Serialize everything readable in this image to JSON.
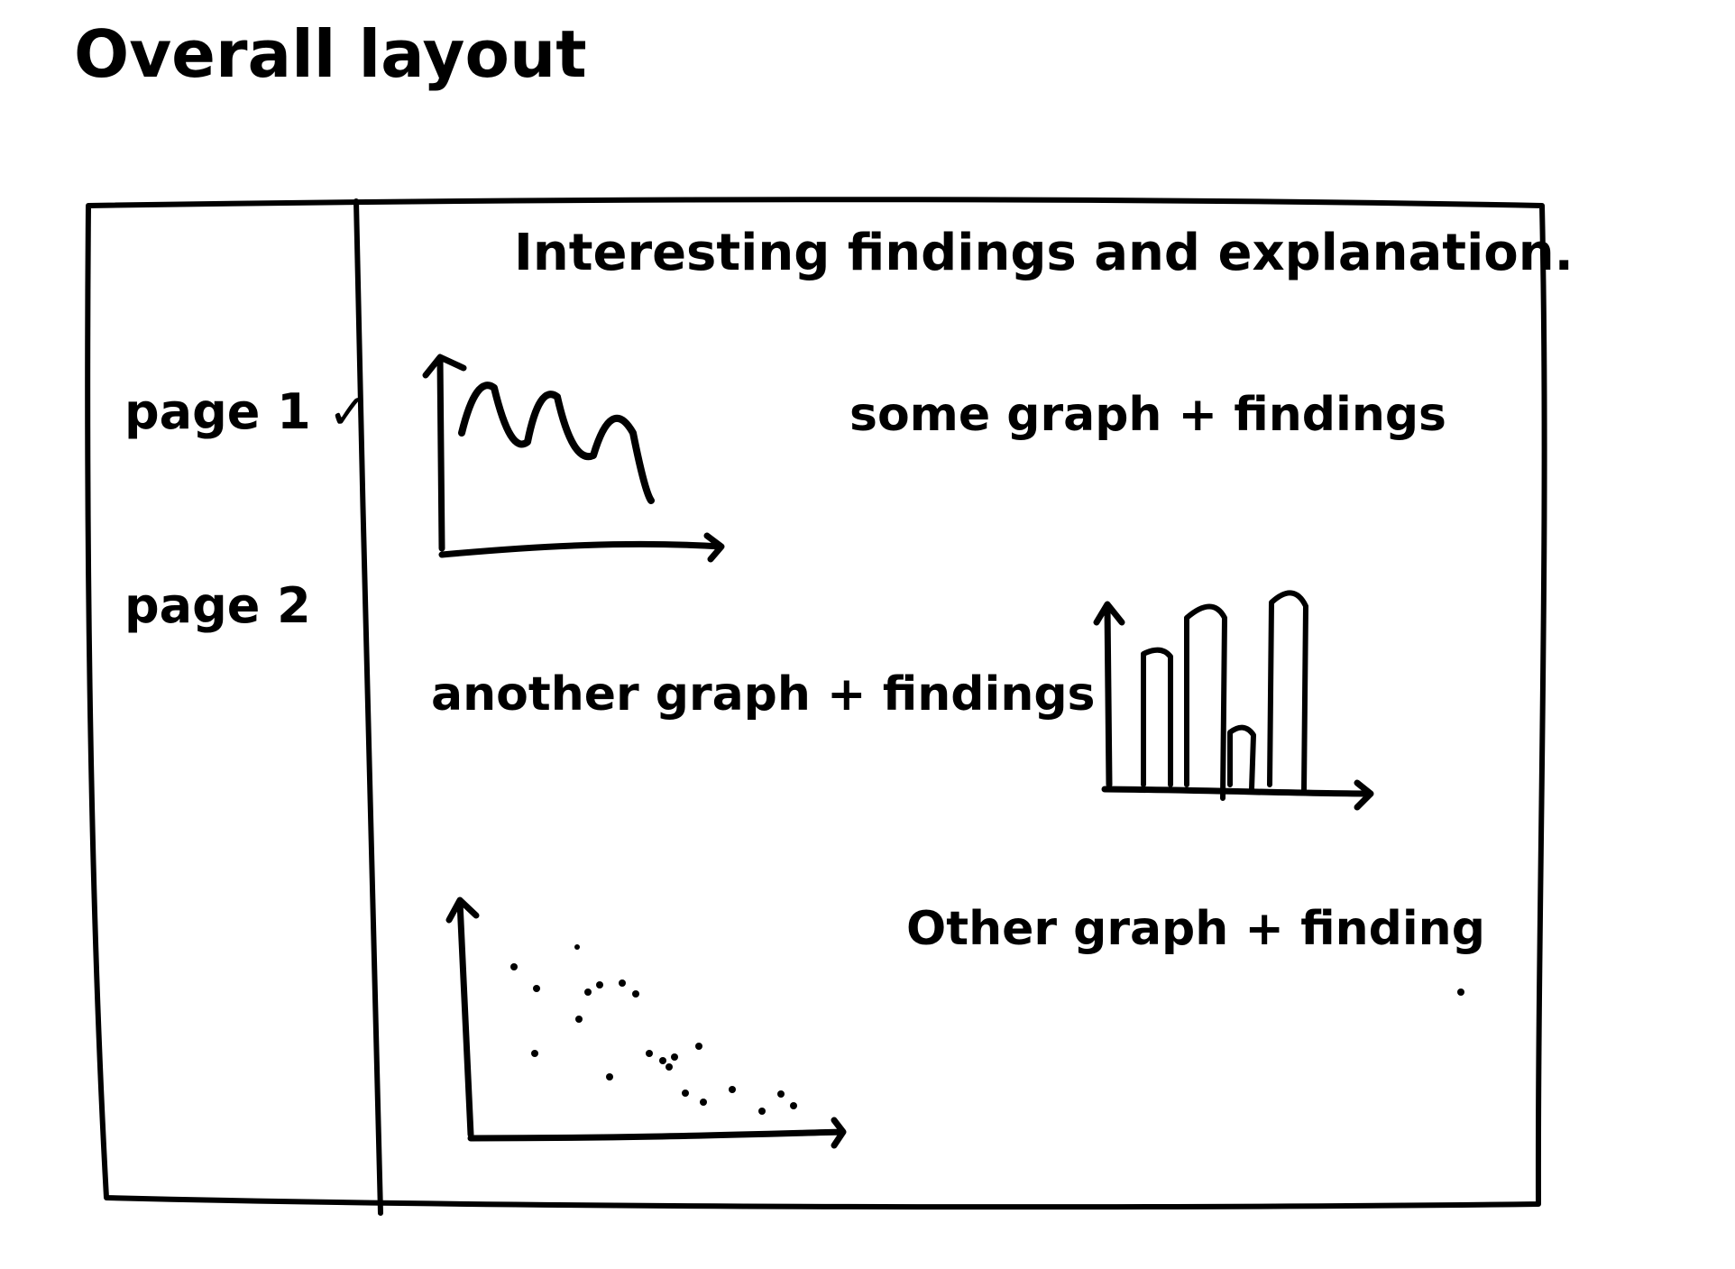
{
  "title": "Overall layout",
  "sidebar": {
    "items": [
      {
        "label": "page 1",
        "checked": true,
        "check_glyph": "✓"
      },
      {
        "label": "page 2",
        "checked": false
      }
    ]
  },
  "main": {
    "heading": "Interesting findings and explanation.",
    "sections": [
      {
        "caption": "some graph + findings",
        "sketch": "line"
      },
      {
        "caption": "another graph + findings",
        "sketch": "bar"
      },
      {
        "caption": "Other graph + finding",
        "sketch": "scatter"
      }
    ]
  },
  "colors": {
    "ink": "#000000",
    "paper": "#ffffff"
  }
}
